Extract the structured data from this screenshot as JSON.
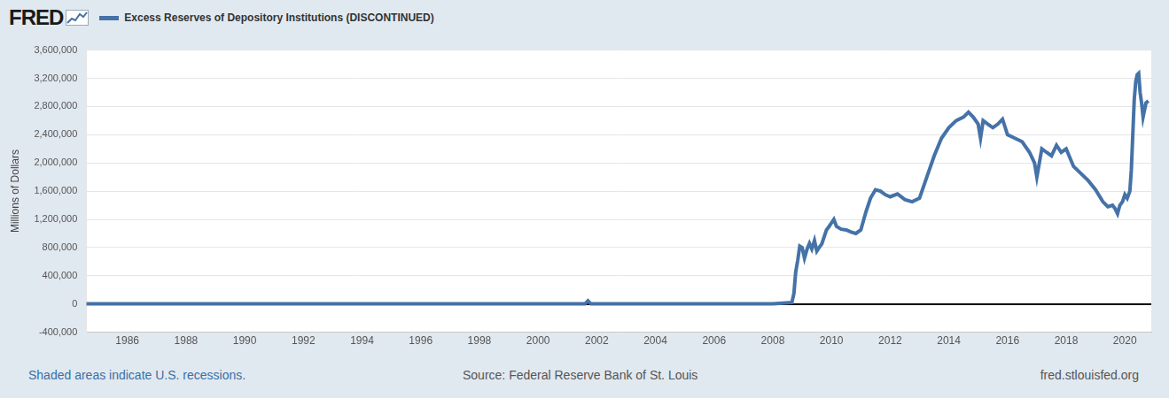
{
  "logo": "FRED",
  "footnote": "Shaded areas indicate U.S. recessions.",
  "source": "Source: Federal Reserve Bank of St. Louis",
  "url": "fred.stlouisfed.org",
  "chart_data": {
    "type": "line",
    "y_label": "Millions of Dollars",
    "legend": "top-left",
    "grid": "y",
    "x": [
      1984.6,
      1986,
      1988,
      1990,
      1992,
      1994,
      1996,
      1998,
      2000,
      2001.6,
      2001.7,
      2001.8,
      2004,
      2006,
      2008,
      2008.65,
      2008.72,
      2008.78,
      2008.85,
      2008.92,
      2009.0,
      2009.08,
      2009.17,
      2009.25,
      2009.33,
      2009.42,
      2009.5,
      2009.58,
      2009.67,
      2009.75,
      2009.83,
      2009.92,
      2010.0,
      2010.08,
      2010.17,
      2010.33,
      2010.5,
      2010.67,
      2010.83,
      2011.0,
      2011.17,
      2011.33,
      2011.5,
      2011.67,
      2011.83,
      2012.0,
      2012.25,
      2012.5,
      2012.75,
      2013.0,
      2013.25,
      2013.5,
      2013.75,
      2014.0,
      2014.25,
      2014.5,
      2014.67,
      2014.83,
      2015.0,
      2015.08,
      2015.17,
      2015.33,
      2015.5,
      2015.67,
      2015.83,
      2016.0,
      2016.25,
      2016.5,
      2016.75,
      2016.92,
      2017.0,
      2017.17,
      2017.33,
      2017.5,
      2017.67,
      2017.83,
      2018.0,
      2018.25,
      2018.5,
      2018.75,
      2019.0,
      2019.25,
      2019.42,
      2019.58,
      2019.67,
      2019.75,
      2019.83,
      2019.92,
      2020.0,
      2020.08,
      2020.17,
      2020.22,
      2020.27,
      2020.32,
      2020.37,
      2020.42,
      2020.47,
      2020.52,
      2020.57,
      2020.62,
      2020.67,
      2020.72,
      2020.8
    ],
    "series": [
      {
        "name": "Excess Reserves of Depository Institutions (DISCONTINUED)",
        "color": "#4572a7",
        "values": [
          1000,
          1200,
          1100,
          1000,
          1200,
          1100,
          1000,
          1500,
          1200,
          1500,
          45000,
          2000,
          1700,
          1800,
          2000,
          20000,
          150000,
          450000,
          620000,
          820000,
          800000,
          650000,
          780000,
          860000,
          780000,
          900000,
          750000,
          800000,
          850000,
          950000,
          1050000,
          1100000,
          1150000,
          1200000,
          1100000,
          1060000,
          1050000,
          1020000,
          1000000,
          1050000,
          1300000,
          1500000,
          1620000,
          1600000,
          1550000,
          1520000,
          1560000,
          1480000,
          1450000,
          1500000,
          1800000,
          2100000,
          2350000,
          2500000,
          2600000,
          2650000,
          2720000,
          2650000,
          2550000,
          2350000,
          2600000,
          2550000,
          2500000,
          2550000,
          2620000,
          2400000,
          2350000,
          2300000,
          2150000,
          2000000,
          1800000,
          2200000,
          2150000,
          2100000,
          2250000,
          2150000,
          2200000,
          1950000,
          1850000,
          1750000,
          1620000,
          1450000,
          1380000,
          1400000,
          1350000,
          1280000,
          1400000,
          1450000,
          1550000,
          1500000,
          1600000,
          1900000,
          2400000,
          2900000,
          3150000,
          3250000,
          3270000,
          3000000,
          2850000,
          2650000,
          2750000,
          2850000,
          2880000
        ]
      }
    ],
    "xlim": [
      1984.6,
      2020.9
    ],
    "xticks": [
      1986,
      1988,
      1990,
      1992,
      1994,
      1996,
      1998,
      2000,
      2002,
      2004,
      2006,
      2008,
      2010,
      2012,
      2014,
      2016,
      2018,
      2020
    ],
    "ylim": [
      -400000,
      3600000
    ],
    "yticks": [
      {
        "value": -400000,
        "label": "-400,000"
      },
      0,
      {
        "value": 400000,
        "label": "400,000"
      },
      {
        "value": 800000,
        "label": "800,000"
      },
      {
        "value": 1200000,
        "label": "1,200,000"
      },
      {
        "value": 1600000,
        "label": "1,600,000"
      },
      {
        "value": 2000000,
        "label": "2,000,000"
      },
      {
        "value": 2400000,
        "label": "2,400,000"
      },
      {
        "value": 2800000,
        "label": "2,800,000"
      },
      {
        "value": 3200000,
        "label": "3,200,000"
      },
      {
        "value": 3600000,
        "label": "3,600,000"
      }
    ]
  }
}
